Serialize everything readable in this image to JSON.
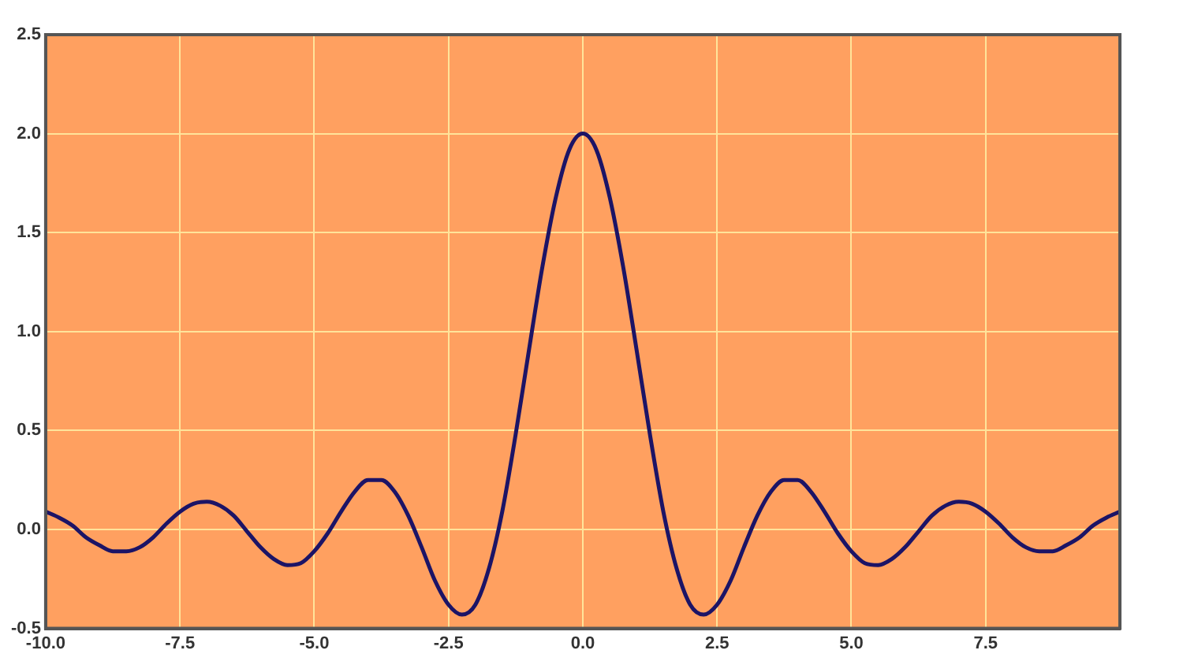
{
  "chart_data": {
    "type": "line",
    "x": [
      -10,
      -9.75,
      -9.5,
      -9.25,
      -9,
      -8.75,
      -8.5,
      -8.25,
      -8,
      -7.75,
      -7.5,
      -7.25,
      -7,
      -6.75,
      -6.5,
      -6.25,
      -6,
      -5.75,
      -5.5,
      -5.25,
      -5,
      -4.75,
      -4.5,
      -4.25,
      -4,
      -3.75,
      -3.5,
      -3.25,
      -3,
      -2.75,
      -2.5,
      -2.25,
      -2,
      -1.75,
      -1.5,
      -1.25,
      -1,
      -0.75,
      -0.5,
      -0.25,
      0,
      0.25,
      0.5,
      0.75,
      1,
      1.25,
      1.5,
      1.75,
      2,
      2.25,
      2.5,
      2.75,
      3,
      3.25,
      3.5,
      3.75,
      4,
      4.25,
      4.5,
      4.75,
      5,
      5.25,
      5.5,
      5.75,
      6,
      6.25,
      6.5,
      6.75,
      7,
      7.25,
      7.5,
      7.75,
      8,
      8.25,
      8.5,
      8.75,
      9,
      9.25,
      9.5,
      9.75,
      10
    ],
    "series": [
      {
        "color": "#1c1466",
        "values": [
          0.09,
          0.06,
          0.02,
          -0.04,
          -0.08,
          -0.11,
          -0.11,
          -0.09,
          -0.04,
          0.03,
          0.09,
          0.13,
          0.14,
          0.12,
          0.07,
          -0.01,
          -0.09,
          -0.15,
          -0.18,
          -0.17,
          -0.11,
          -0.02,
          0.09,
          0.19,
          0.25,
          0.25,
          0.19,
          0.07,
          -0.09,
          -0.26,
          -0.38,
          -0.43,
          -0.38,
          -0.2,
          0.09,
          0.48,
          0.91,
          1.33,
          1.68,
          1.92,
          2,
          1.92,
          1.68,
          1.33,
          0.91,
          0.48,
          0.09,
          -0.2,
          -0.38,
          -0.43,
          -0.38,
          -0.26,
          -0.09,
          0.07,
          0.19,
          0.25,
          0.25,
          0.19,
          0.09,
          -0.02,
          -0.11,
          -0.17,
          -0.18,
          -0.15,
          -0.09,
          -0.01,
          0.07,
          0.12,
          0.14,
          0.13,
          0.09,
          0.03,
          -0.04,
          -0.09,
          -0.11,
          -0.11,
          -0.08,
          -0.04,
          0.02,
          0.06,
          0.09
        ]
      }
    ],
    "xlim": [
      -10,
      10
    ],
    "xticks": [
      {
        "value": -10,
        "label": "-10.0"
      },
      -7.5,
      {
        "value": -5,
        "label": "-5.0"
      },
      -2.5,
      {
        "value": 0,
        "label": "0.0"
      },
      2.5,
      {
        "value": 5,
        "label": "5.0"
      },
      7.5
    ],
    "ylim": [
      -0.5,
      2.5
    ],
    "yticks": [
      -0.5,
      {
        "value": 0,
        "label": "0.0"
      },
      0.5,
      {
        "value": 1,
        "label": "1.0"
      },
      1.5,
      {
        "value": 2,
        "label": "2.0"
      },
      2.5
    ],
    "grid": true,
    "legend": false,
    "marker": "none",
    "line_style": "solid"
  }
}
